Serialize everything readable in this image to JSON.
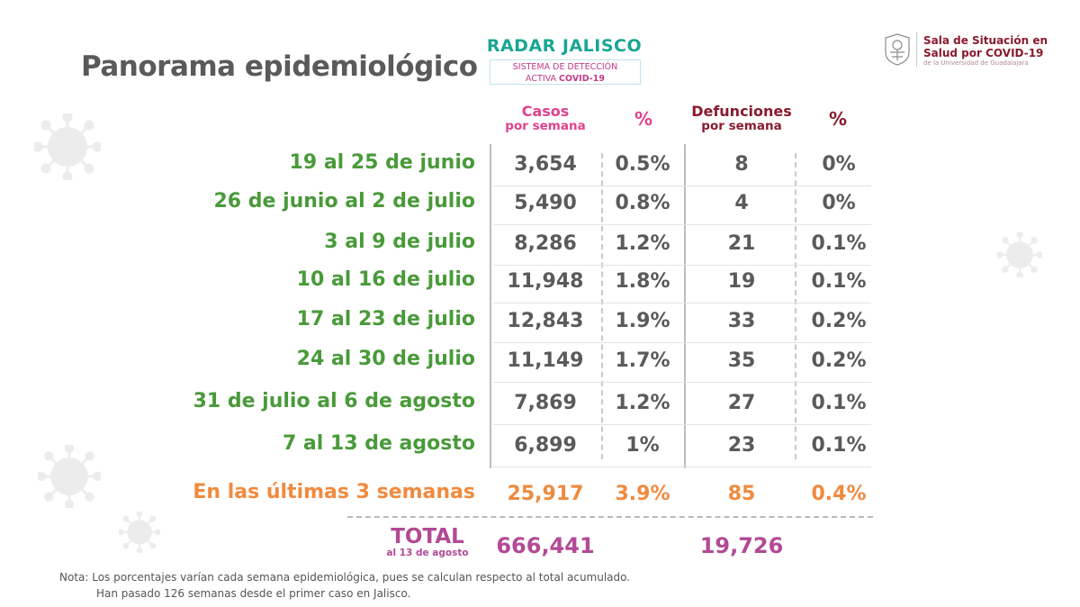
{
  "title": "Panorama epidemiológico",
  "radar": {
    "title": "RADAR JALISCO",
    "line1": "SISTEMA DE DETECCIÓN",
    "line2_prefix": "ACTIVA ",
    "line2_bold": "COVID-19"
  },
  "sala": {
    "line1": "Sala de Situación en",
    "line2": "Salud por COVID-19",
    "line3": "de la Universidad de Guadalajara"
  },
  "headers": {
    "casos_line1": "Casos",
    "casos_line2": "por semana",
    "pct": "%",
    "def_line1": "Defunciones",
    "def_line2": "por semana",
    "pct2": "%"
  },
  "rows": [
    {
      "label": "19 al 25 de junio",
      "casos": "3,654",
      "pct": "0.5%",
      "def": "8",
      "pct_def": "0%"
    },
    {
      "label": "26 de junio al 2 de julio",
      "casos": "5,490",
      "pct": "0.8%",
      "def": "4",
      "pct_def": "0%"
    },
    {
      "label": "3 al 9 de julio",
      "casos": "8,286",
      "pct": "1.2%",
      "def": "21",
      "pct_def": "0.1%"
    },
    {
      "label": "10 al 16 de julio",
      "casos": "11,948",
      "pct": "1.8%",
      "def": "19",
      "pct_def": "0.1%"
    },
    {
      "label": "17 al 23 de julio",
      "casos": "12,843",
      "pct": "1.9%",
      "def": "33",
      "pct_def": "0.2%"
    },
    {
      "label": "24 al 30 de julio",
      "casos": "11,149",
      "pct": "1.7%",
      "def": "35",
      "pct_def": "0.2%"
    },
    {
      "label": "31 de julio al 6 de agosto",
      "casos": "7,869",
      "pct": "1.2%",
      "def": "27",
      "pct_def": "0.1%"
    },
    {
      "label": "7 al 13 de agosto",
      "casos": "6,899",
      "pct": "1%",
      "def": "23",
      "pct_def": "0.1%"
    }
  ],
  "summary": {
    "label": "En las últimas 3 semanas",
    "casos": "25,917",
    "pct": "3.9%",
    "def": "85",
    "pct_def": "0.4%"
  },
  "total": {
    "label": "TOTAL",
    "sublabel": "al 13 de agosto",
    "casos": "666,441",
    "def": "19,726"
  },
  "note": {
    "line1": "Nota: Los porcentajes varían cada semana epidemiológica, pues se calculan respecto al total acumulado.",
    "line2": "Han pasado 126 semanas desde el primer caso en Jalisco."
  },
  "colors": {
    "green": "#4a9a3a",
    "orange": "#f08a3e",
    "pink": "#e1418b",
    "maroon": "#8a1a2d",
    "purple": "#b24a95",
    "teal": "#1aa594"
  }
}
